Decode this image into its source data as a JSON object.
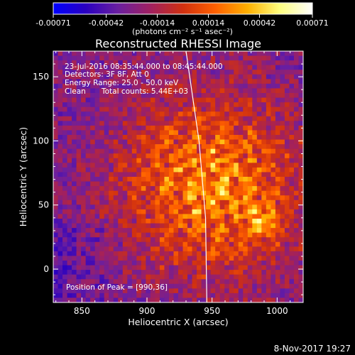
{
  "chart_data": {
    "type": "heatmap",
    "title": "Reconstructed RHESSI Image",
    "xlabel": "Heliocentric X (arcsec)",
    "ylabel": "Heliocentric Y (arcsec)",
    "xlim": [
      828,
      1020
    ],
    "ylim": [
      -26,
      170
    ],
    "x_ticks": [
      "850",
      "900",
      "950",
      "1000"
    ],
    "x_tick_values": [
      850,
      900,
      950,
      1000
    ],
    "y_ticks": [
      "0",
      "50",
      "100",
      "150"
    ],
    "y_tick_values": [
      0,
      50,
      100,
      150
    ],
    "colorbar": {
      "ticks": [
        "-0.00071",
        "-0.00042",
        "-0.00014",
        "0.00014",
        "0.00042",
        "0.00071"
      ],
      "tick_values": [
        -0.00071,
        -0.00042,
        -0.00014,
        0.00014,
        0.00042,
        0.00071
      ],
      "range": [
        -0.00071,
        0.00071
      ],
      "units": "(photons cm⁻² s⁻¹ asec⁻²)"
    },
    "colormap": [
      "#0000ff",
      "#2a00c0",
      "#6a1fa0",
      "#a02060",
      "#d03010",
      "#ff6000",
      "#ffb000",
      "#ffff80",
      "#ffffff"
    ],
    "annotations": {
      "time_range": "23-Jul-2016 08:35:44.000 to 08:45:44.000",
      "detectors": "Detectors: 3F 8F, Att 0",
      "energy": "Energy Range: 25.0 - 50.0 keV",
      "clean": "Clean",
      "total_counts": "Total counts: 5.44E+03",
      "peak": "Position of Peak = [990,36]"
    },
    "peak_position": [
      990,
      36
    ],
    "limb_curve": [
      [
        930,
        170
      ],
      [
        940,
        100
      ],
      [
        945,
        40
      ],
      [
        946,
        -26
      ]
    ]
  },
  "footer": {
    "date": "8-Nov-2017 19:27"
  }
}
